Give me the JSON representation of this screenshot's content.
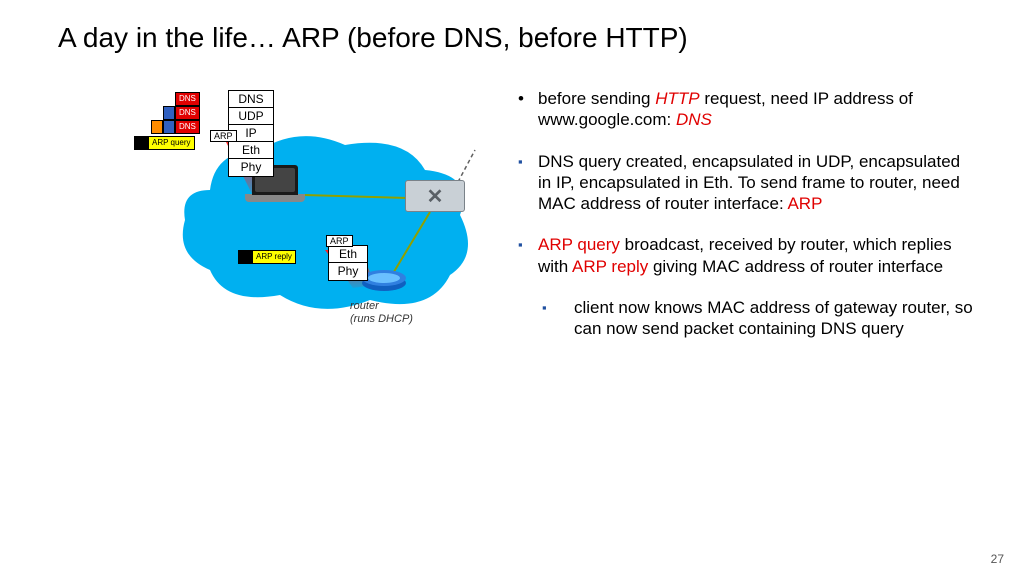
{
  "title": "A day in the life… ARP (before DNS, before HTTP)",
  "page_number": "27",
  "colors": {
    "cloud": "#00b0f0",
    "red_text": "#e00000",
    "bullet_blue": "#2050a0",
    "yellow": "#ffff00",
    "orange": "#ff8c00",
    "seg_blue": "#3060c0",
    "wire": "#8fa000"
  },
  "stack_top": {
    "layers": [
      "DNS",
      "UDP",
      "IP",
      "Eth",
      "Phy"
    ]
  },
  "stack_bot": {
    "layers": [
      "Eth",
      "Phy"
    ]
  },
  "arp_label": "ARP",
  "packets": {
    "dns_label": "DNS",
    "arp_query_label": "ARP query",
    "arp_reply_label": "ARP reply"
  },
  "router_caption": {
    "l1": "router",
    "l2": "(runs DHCP)"
  },
  "bullets": [
    {
      "mark": "•",
      "parts": [
        {
          "t": "before sending "
        },
        {
          "t": "HTTP",
          "cls": "red it"
        },
        {
          "t": " request, need IP address of www.google.com:  "
        },
        {
          "t": "DNS",
          "cls": "red it"
        }
      ]
    },
    {
      "mark": "▪",
      "cls": "sq",
      "parts": [
        {
          "t": "DNS query created, encapsulated in UDP, encapsulated in IP, encapsulated in Eth.  To send frame to router, need MAC address of router interface: "
        },
        {
          "t": "ARP",
          "cls": "red"
        }
      ]
    },
    {
      "mark": "▪",
      "cls": "sq",
      "parts": [
        {
          "t": "ARP query",
          "cls": "red"
        },
        {
          "t": " broadcast, received by router, which replies with "
        },
        {
          "t": "ARP reply",
          "cls": "red"
        },
        {
          "t": " giving MAC address of router interface"
        }
      ]
    },
    {
      "mark": "▪",
      "cls": "sq b4",
      "parts": [
        {
          "t": "client now knows MAC address of gateway router, so can now send packet containing DNS query"
        }
      ]
    }
  ]
}
